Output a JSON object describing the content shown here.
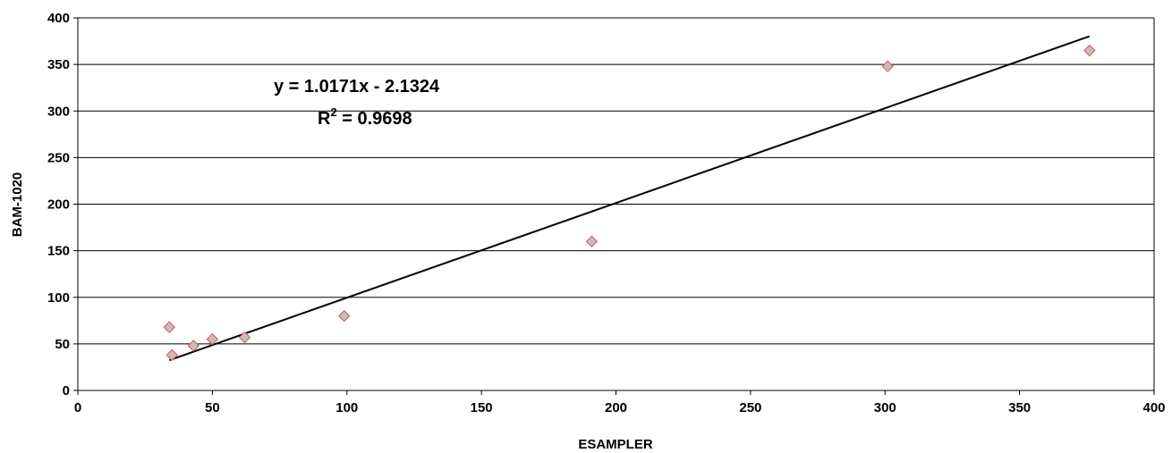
{
  "chart_data": {
    "type": "scatter",
    "title": "",
    "xlabel": "ESAMPLER",
    "ylabel": "BAM-1020",
    "xlim": [
      0,
      400
    ],
    "ylim": [
      0,
      400
    ],
    "x_ticks": [
      0,
      50,
      100,
      150,
      200,
      250,
      300,
      350,
      400
    ],
    "y_ticks": [
      0,
      50,
      100,
      150,
      200,
      250,
      300,
      350,
      400
    ],
    "grid": "horizontal",
    "legend": "none",
    "marker": "diamond",
    "marker_fill": "#c0c0c0",
    "marker_stroke": "#e05050",
    "series": [
      {
        "points": [
          {
            "x": 34,
            "y": 68
          },
          {
            "x": 35,
            "y": 38
          },
          {
            "x": 43,
            "y": 48
          },
          {
            "x": 50,
            "y": 55
          },
          {
            "x": 62,
            "y": 57
          },
          {
            "x": 99,
            "y": 80
          },
          {
            "x": 191,
            "y": 160
          },
          {
            "x": 301,
            "y": 348
          },
          {
            "x": 376,
            "y": 365
          }
        ]
      }
    ],
    "trendline": {
      "slope": 1.0171,
      "intercept": -2.1324,
      "x_range": [
        34,
        376
      ],
      "color": "#000000"
    },
    "annotations": {
      "equation": "y = 1.0171x - 2.1324",
      "r2_base": "R",
      "r2_sup": "2",
      "r2_value": " = 0.9698"
    }
  }
}
